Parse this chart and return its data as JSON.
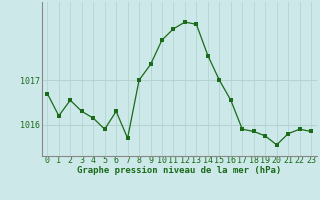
{
  "hours": [
    0,
    1,
    2,
    3,
    4,
    5,
    6,
    7,
    8,
    9,
    10,
    11,
    12,
    13,
    14,
    15,
    16,
    17,
    18,
    19,
    20,
    21,
    22,
    23
  ],
  "pressure": [
    1016.7,
    1016.2,
    1016.55,
    1016.3,
    1016.15,
    1015.9,
    1016.3,
    1015.7,
    1017.0,
    1017.35,
    1017.9,
    1018.15,
    1018.3,
    1018.25,
    1017.55,
    1017.0,
    1016.55,
    1015.9,
    1015.85,
    1015.75,
    1015.55,
    1015.8,
    1015.9,
    1015.85
  ],
  "line_color": "#1a6b1a",
  "marker_color": "#1a6b1a",
  "bg_color": "#cce8e8",
  "grid_color_v": "#b8d8d8",
  "grid_color_h": "#b8d0d0",
  "axis_line_color": "#888888",
  "ylabel_ticks": [
    1016,
    1017
  ],
  "xlabel": "Graphe pression niveau de la mer (hPa)",
  "xlabel_color": "#1a6b1a",
  "ylim_min": 1015.3,
  "ylim_max": 1018.75,
  "tick_label_color": "#1a6b1a",
  "font_size_xlabel": 6.5,
  "font_size_ticks": 6.0
}
